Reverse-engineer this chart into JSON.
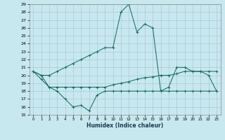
{
  "xlabel": "Humidex (Indice chaleur)",
  "xlim": [
    -0.5,
    23.5
  ],
  "ylim": [
    15,
    29
  ],
  "yticks": [
    15,
    16,
    17,
    18,
    19,
    20,
    21,
    22,
    23,
    24,
    25,
    26,
    27,
    28,
    29
  ],
  "xticks": [
    0,
    1,
    2,
    3,
    4,
    5,
    6,
    7,
    8,
    9,
    10,
    11,
    12,
    13,
    14,
    15,
    16,
    17,
    18,
    19,
    20,
    21,
    22,
    23
  ],
  "bg_color": "#c8e8f0",
  "grid_color": "#a8c8d8",
  "line_color": "#1a6e60",
  "line1_max": [
    20.5,
    20.0,
    20.0,
    20.5,
    21.0,
    21.5,
    22.0,
    22.5,
    23.0,
    23.5,
    23.5,
    28.0,
    29.0,
    25.5,
    26.5,
    26.0,
    18.0,
    18.5,
    21.0,
    21.0,
    20.5,
    20.5,
    20.0,
    18.0
  ],
  "line2_min": [
    20.5,
    20.0,
    18.5,
    18.0,
    17.0,
    16.0,
    16.2,
    15.5,
    17.5,
    18.0,
    18.0,
    18.0,
    18.0,
    18.0,
    18.0,
    18.0,
    18.0,
    18.0,
    18.0,
    18.0,
    18.0,
    18.0,
    18.0,
    18.0
  ],
  "line3_mean": [
    20.5,
    19.5,
    18.5,
    18.5,
    18.5,
    18.5,
    18.5,
    18.5,
    18.5,
    18.5,
    18.8,
    19.0,
    19.2,
    19.5,
    19.7,
    19.8,
    20.0,
    20.0,
    20.2,
    20.5,
    20.5,
    20.5,
    20.5,
    20.5
  ]
}
